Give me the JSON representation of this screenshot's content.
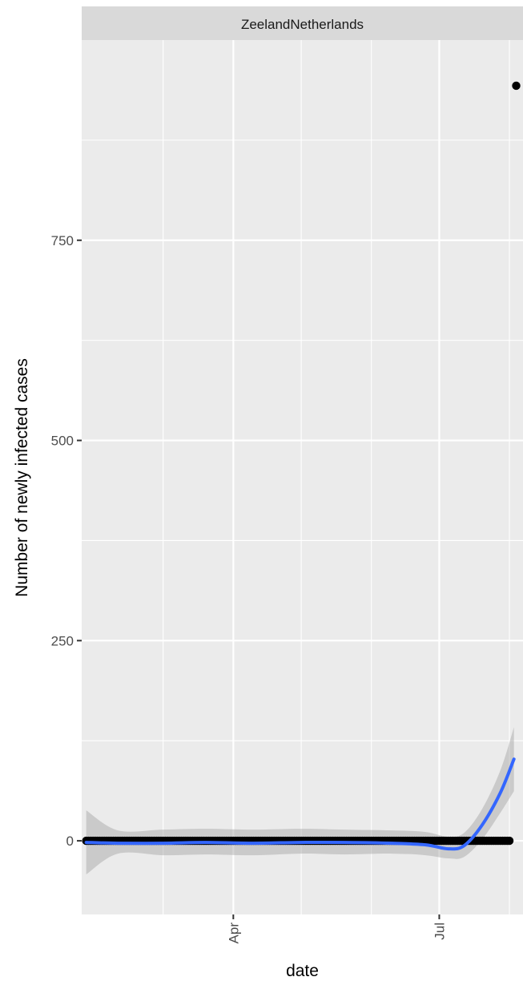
{
  "chart_data": {
    "type": "scatter",
    "facet_label": "ZeelandNetherlands",
    "xlabel": "date",
    "ylabel": "Number of newly infected cases",
    "x_range": [
      "2020-01-25",
      "2020-08-07"
    ],
    "y_range": [
      -92,
      1000
    ],
    "x_ticks": [
      {
        "label": "Apr",
        "date": "2020-04-01"
      },
      {
        "label": "Jul",
        "date": "2020-07-01"
      }
    ],
    "x_minor_ticks": [
      "2020-03-01",
      "2020-05-01",
      "2020-06-01",
      "2020-08-01"
    ],
    "y_ticks": [
      0,
      250,
      500,
      750
    ],
    "y_minor_ticks": [
      125,
      375,
      625,
      875
    ],
    "grid": true,
    "points_start": "2020-01-27",
    "points_end": "2020-08-01",
    "points_value": 0,
    "outlier": {
      "date": "2020-08-04",
      "value": 943
    },
    "smooth": [
      {
        "date": "2020-01-27",
        "value": -2,
        "lo": -42,
        "hi": 38
      },
      {
        "date": "2020-02-10",
        "value": -3,
        "lo": -16,
        "hi": 13
      },
      {
        "date": "2020-03-01",
        "value": -3,
        "lo": -18,
        "hi": 14
      },
      {
        "date": "2020-03-20",
        "value": -2,
        "lo": -17,
        "hi": 15
      },
      {
        "date": "2020-04-10",
        "value": -3,
        "lo": -18,
        "hi": 14
      },
      {
        "date": "2020-05-01",
        "value": -2,
        "lo": -16,
        "hi": 15
      },
      {
        "date": "2020-05-20",
        "value": -2,
        "lo": -17,
        "hi": 14
      },
      {
        "date": "2020-06-10",
        "value": -3,
        "lo": -16,
        "hi": 13
      },
      {
        "date": "2020-06-25",
        "value": -5,
        "lo": -18,
        "hi": 11
      },
      {
        "date": "2020-07-05",
        "value": -10,
        "lo": -22,
        "hi": 5
      },
      {
        "date": "2020-07-12",
        "value": -6,
        "lo": -20,
        "hi": 10
      },
      {
        "date": "2020-07-20",
        "value": 20,
        "lo": 2,
        "hi": 40
      },
      {
        "date": "2020-07-28",
        "value": 60,
        "lo": 35,
        "hi": 88
      },
      {
        "date": "2020-08-03",
        "value": 102,
        "lo": 62,
        "hi": 142
      }
    ],
    "colors": {
      "panel": "#ebebeb",
      "strip": "#d9d9d9",
      "grid": "#ffffff",
      "points": "#000000",
      "smooth_line": "#3366ff",
      "ribbon": "#999999"
    }
  }
}
